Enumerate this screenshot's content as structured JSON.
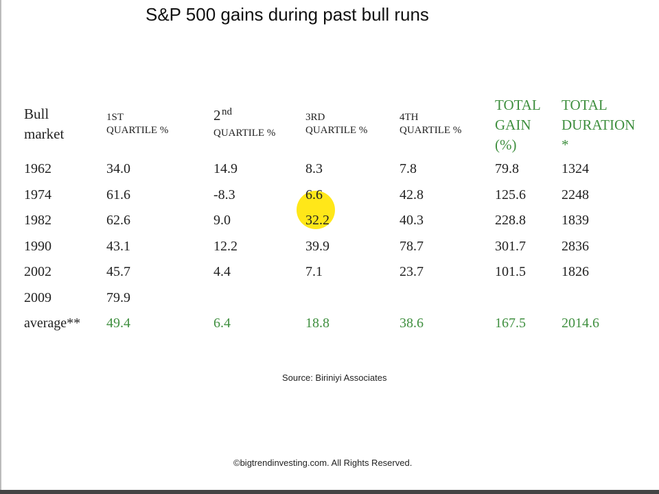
{
  "title": "S&P 500 gains during past bull runs",
  "table": {
    "headers": [
      [
        "Bull",
        "market"
      ],
      [
        "1ST",
        "QUARTILE %"
      ],
      [
        "2",
        "nd",
        "QUARTILE %"
      ],
      [
        "3RD",
        "QUARTILE %"
      ],
      [
        "4TH",
        "QUARTILE %"
      ],
      [
        "TOTAL",
        "GAIN",
        "(%)"
      ],
      [
        "TOTAL",
        "DURATION",
        "*"
      ]
    ],
    "rows": [
      [
        "1962",
        "34.0",
        "14.9",
        "8.3",
        "7.8",
        "79.8",
        "1324"
      ],
      [
        "1974",
        "61.6",
        "-8.3",
        "6.6",
        "42.8",
        "125.6",
        "2248"
      ],
      [
        "1982",
        "62.6",
        "9.0",
        "32.2",
        "40.3",
        "228.8",
        "1839"
      ],
      [
        "1990",
        "43.1",
        "12.2",
        "39.9",
        "78.7",
        "301.7",
        "2836"
      ],
      [
        "2002",
        "45.7",
        "4.4",
        "7.1",
        "23.7",
        "101.5",
        "1826"
      ],
      [
        "2009",
        "79.9",
        null,
        null,
        null,
        null,
        null
      ],
      [
        "average**",
        "49.4",
        "6.4",
        "18.8",
        "38.6",
        "167.5",
        "2014.6"
      ]
    ]
  },
  "source": "Source: Biriniyi Associates",
  "copyright": "©bigtrendinvesting.com. All Rights Reserved."
}
